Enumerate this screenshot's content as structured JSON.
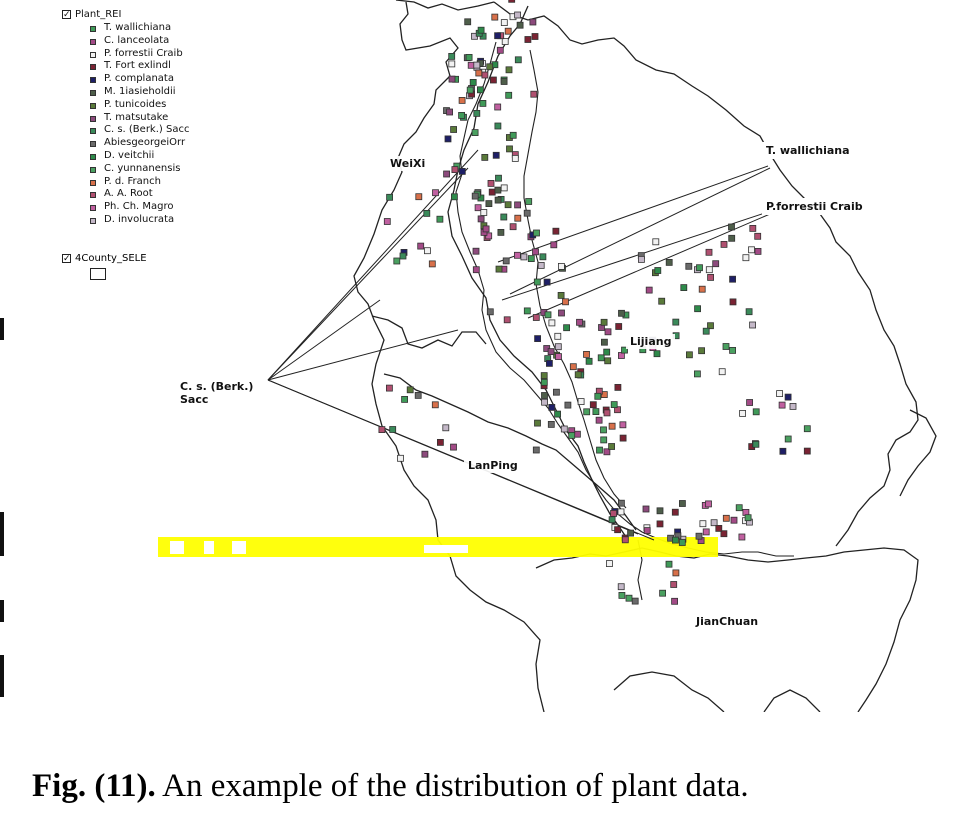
{
  "map": {
    "layers": [
      {
        "name": "Plant_REI",
        "checked": true
      },
      {
        "name": "4County_SELE",
        "checked": true
      }
    ],
    "legend": [
      {
        "label": "T. wallichiana",
        "color": "#3f9a58"
      },
      {
        "label": "C. lanceolata",
        "color": "#a24a86"
      },
      {
        "label": "P. forrestii Craib",
        "color": "#f2f2f2"
      },
      {
        "label": "T. Fort exlindl",
        "color": "#7a2333"
      },
      {
        "label": "P. complanata",
        "color": "#1e1f66"
      },
      {
        "label": "M. 1iasieholdii",
        "color": "#4e5e4a"
      },
      {
        "label": "P. tunicoides",
        "color": "#5a7a3a"
      },
      {
        "label": "T. matsutake",
        "color": "#8c4a7c"
      },
      {
        "label": "C. s. (Berk.) Sacc",
        "color": "#3a8a5a"
      },
      {
        "label": "AbiesgeorgeiOrr",
        "color": "#6a6a6a"
      },
      {
        "label": "D. veitchii",
        "color": "#2e8a4a"
      },
      {
        "label": "C. yunnanensis",
        "color": "#4aa060"
      },
      {
        "label": "P. d. Franch",
        "color": "#d8704a"
      },
      {
        "label": "A. A. Root",
        "color": "#b05070"
      },
      {
        "label": "Ph. Ch. Magro",
        "color": "#c060a0"
      },
      {
        "label": "D. involucrata",
        "color": "#c4b8c8"
      }
    ],
    "places": {
      "weixi": "WeiXi",
      "lijiang": "Lijiang",
      "lanping": "LanPing",
      "jianchuan": "JianChuan"
    },
    "callouts": {
      "t_wallichiana": "T. wallichiana",
      "p_forrestii": "P.forrestii Craib",
      "cs_line1": "C. s. (Berk.)",
      "cs_line2": "Sacc"
    }
  },
  "caption": {
    "prefix": "Fig. (11).",
    "text": " An example of the distribution of plant data."
  }
}
